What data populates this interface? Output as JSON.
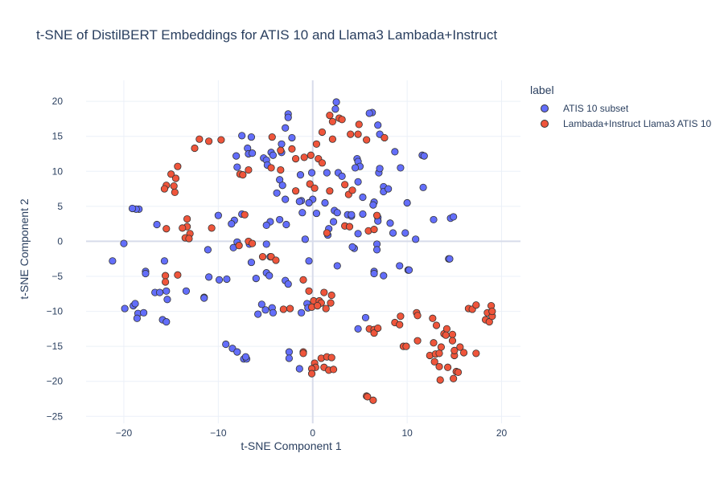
{
  "chart_data": {
    "type": "scatter",
    "title": "t-SNE of DistilBERT Embeddings for ATIS 10 and Llama3 Lambada+Instruct",
    "xlabel": "t-SNE Component 1",
    "ylabel": "t-SNE Component 2",
    "xlim": [
      -24,
      22
    ],
    "ylim": [
      -26,
      23
    ],
    "xticks": [
      -20,
      -10,
      0,
      10,
      20
    ],
    "yticks": [
      -25,
      -20,
      -15,
      -10,
      -5,
      0,
      5,
      10,
      15,
      20
    ],
    "grid": true,
    "legend_title": "label",
    "legend_position": "top-right",
    "series": [
      {
        "name": "ATIS 10 subset",
        "color": "#636efa",
        "points": [
          [
            2.5,
            19.9
          ],
          [
            -2.6,
            18.2
          ],
          [
            -2.6,
            17.7
          ],
          [
            2.4,
            18.9
          ],
          [
            6.3,
            18.4
          ],
          [
            6.0,
            18.3
          ],
          [
            -7.5,
            15.1
          ],
          [
            -2.2,
            14.8
          ],
          [
            -6.5,
            14.9
          ],
          [
            -2.9,
            16.2
          ],
          [
            7.1,
            15.3
          ],
          [
            6.9,
            16.6
          ],
          [
            -3.3,
            13.9
          ],
          [
            -6.9,
            13.3
          ],
          [
            -6.8,
            12.5
          ],
          [
            -6.4,
            12.6
          ],
          [
            -8.1,
            12.2
          ],
          [
            -4.4,
            12.7
          ],
          [
            -4.2,
            12.3
          ],
          [
            -3.3,
            12.7
          ],
          [
            -5.2,
            11.9
          ],
          [
            -4.9,
            11.6
          ],
          [
            -4.8,
            10.9
          ],
          [
            -8.0,
            10.6
          ],
          [
            4.7,
            11.8
          ],
          [
            4.8,
            11.4
          ],
          [
            8.7,
            12.8
          ],
          [
            11.6,
            12.3
          ],
          [
            11.8,
            12.2
          ],
          [
            -0.1,
            9.8
          ],
          [
            2.7,
            9.8
          ],
          [
            1.5,
            9.8
          ],
          [
            -1.3,
            9.5
          ],
          [
            3.1,
            9.3
          ],
          [
            5.0,
            10.7
          ],
          [
            4.5,
            10.5
          ],
          [
            7.0,
            9.8
          ],
          [
            7.1,
            10.4
          ],
          [
            9.3,
            10.5
          ],
          [
            4.8,
            8.5
          ],
          [
            7.5,
            7.8
          ],
          [
            7.5,
            7.1
          ],
          [
            8.0,
            7.5
          ],
          [
            11.7,
            7.7
          ],
          [
            -3.5,
            8.8
          ],
          [
            -3.8,
            6.9
          ],
          [
            -2.9,
            6.0
          ],
          [
            -3.2,
            8.0
          ],
          [
            -1.2,
            5.8
          ],
          [
            0.0,
            6.0
          ],
          [
            5.3,
            6.3
          ],
          [
            6.5,
            5.6
          ],
          [
            6.4,
            5.2
          ],
          [
            10.0,
            5.5
          ],
          [
            -0.4,
            5.5
          ],
          [
            1.3,
            5.5
          ],
          [
            -10.0,
            3.7
          ],
          [
            -8.3,
            3.0
          ],
          [
            -7.5,
            3.9
          ],
          [
            -8.6,
            2.5
          ],
          [
            -4.5,
            2.8
          ],
          [
            -3.5,
            3.1
          ],
          [
            -2.8,
            2.4
          ],
          [
            -4.9,
            2.3
          ],
          [
            -1.4,
            5.7
          ],
          [
            -1.1,
            4.1
          ],
          [
            0.4,
            4.0
          ],
          [
            3.7,
            3.8
          ],
          [
            4.1,
            3.6
          ],
          [
            5.3,
            3.9
          ],
          [
            6.9,
            3.4
          ],
          [
            6.9,
            2.9
          ],
          [
            8.2,
            2.6
          ],
          [
            12.8,
            3.1
          ],
          [
            14.6,
            3.3
          ],
          [
            14.9,
            3.5
          ],
          [
            -18.4,
            4.6
          ],
          [
            -18.7,
            4.6
          ],
          [
            -19.1,
            4.7
          ],
          [
            -16.5,
            2.4
          ],
          [
            -0.8,
            0.3
          ],
          [
            1.6,
            0.9
          ],
          [
            1.7,
            1.8
          ],
          [
            2.2,
            2.8
          ],
          [
            2.3,
            4.4
          ],
          [
            2.6,
            4.1
          ],
          [
            4.1,
            3.8
          ],
          [
            4.4,
            -1.0
          ],
          [
            4.2,
            -0.8
          ],
          [
            4.8,
            1.1
          ],
          [
            6.8,
            -0.4
          ],
          [
            6.8,
            -1.2
          ],
          [
            8.5,
            1.2
          ],
          [
            9.8,
            1.2
          ],
          [
            10.9,
            0.3
          ],
          [
            -8.0,
            -0.1
          ],
          [
            -8.4,
            -0.9
          ],
          [
            -6.7,
            -0.4
          ],
          [
            -4.9,
            -0.4
          ],
          [
            -21.2,
            -2.8
          ],
          [
            -20.0,
            -0.3
          ],
          [
            -11.1,
            -1.2
          ],
          [
            -6.5,
            -3.0
          ],
          [
            -4.5,
            -2.2
          ],
          [
            -15.7,
            -2.8
          ],
          [
            -17.7,
            -4.3
          ],
          [
            -17.7,
            -4.6
          ],
          [
            -0.4,
            -2.8
          ],
          [
            2.6,
            -3.5
          ],
          [
            9.2,
            -3.5
          ],
          [
            10.1,
            -4.1
          ],
          [
            10.2,
            -4.1
          ],
          [
            14.4,
            -2.5
          ],
          [
            14.5,
            -2.5
          ],
          [
            -11.0,
            -5.1
          ],
          [
            -9.9,
            -5.5
          ],
          [
            -9.1,
            -5.4
          ],
          [
            -6.0,
            -5.3
          ],
          [
            -4.9,
            -4.5
          ],
          [
            -4.6,
            -4.9
          ],
          [
            -2.9,
            -5.6
          ],
          [
            -2.6,
            -6.1
          ],
          [
            6.5,
            -4.3
          ],
          [
            6.5,
            -4.6
          ],
          [
            7.5,
            -4.9
          ],
          [
            -16.7,
            -7.3
          ],
          [
            -16.2,
            -7.3
          ],
          [
            -15.5,
            -7.1
          ],
          [
            -15.4,
            -8.3
          ],
          [
            -13.4,
            -7.1
          ],
          [
            -11.5,
            -8.0
          ],
          [
            -11.5,
            -8.1
          ],
          [
            -19.9,
            -9.6
          ],
          [
            -19.0,
            -9.2
          ],
          [
            -18.8,
            -8.9
          ],
          [
            -18.5,
            -10.3
          ],
          [
            -17.9,
            -10.2
          ],
          [
            -18.6,
            -11.0
          ],
          [
            -15.9,
            -11.2
          ],
          [
            -15.5,
            -11.5
          ],
          [
            -5.4,
            -9.0
          ],
          [
            -5.0,
            -9.8
          ],
          [
            -4.3,
            -9.5
          ],
          [
            -4.2,
            -10.2
          ],
          [
            -5.8,
            -10.4
          ],
          [
            -1.2,
            -10.2
          ],
          [
            -0.6,
            -8.9
          ],
          [
            -0.5,
            -9.5
          ],
          [
            4.8,
            -12.5
          ],
          [
            5.6,
            -10.9
          ],
          [
            -9.2,
            -14.7
          ],
          [
            -8.5,
            -15.3
          ],
          [
            -8.0,
            -15.8
          ],
          [
            -7.3,
            -16.8
          ],
          [
            -7.0,
            -16.8
          ],
          [
            -7.1,
            -16.5
          ],
          [
            -2.5,
            -15.8
          ],
          [
            -2.5,
            -16.7
          ],
          [
            -1.4,
            -18.2
          ],
          [
            0.7,
            -8.9
          ]
        ]
      },
      {
        "name": "Lambada+Instruct Llama3 ATIS 10",
        "color": "#ef553b",
        "points": [
          [
            1.8,
            18.0
          ],
          [
            2.8,
            17.6
          ],
          [
            3.1,
            17.4
          ],
          [
            2.1,
            17.1
          ],
          [
            4.9,
            16.7
          ],
          [
            1.0,
            15.6
          ],
          [
            -12.0,
            14.6
          ],
          [
            -11.0,
            14.3
          ],
          [
            -9.7,
            14.5
          ],
          [
            -12.5,
            13.3
          ],
          [
            -14.3,
            10.7
          ],
          [
            -15.0,
            9.6
          ],
          [
            -14.5,
            9.0
          ],
          [
            -15.5,
            8.0
          ],
          [
            -15.7,
            7.5
          ],
          [
            -14.7,
            7.9
          ],
          [
            -14.6,
            7.0
          ],
          [
            -2.2,
            13.2
          ],
          [
            -0.9,
            12.0
          ],
          [
            -0.2,
            12.3
          ],
          [
            -4.3,
            14.9
          ],
          [
            -3.4,
            13.0
          ],
          [
            -1.8,
            11.8
          ],
          [
            0.6,
            11.8
          ],
          [
            1.0,
            11.2
          ],
          [
            0.4,
            13.9
          ],
          [
            2.1,
            14.6
          ],
          [
            4.0,
            15.3
          ],
          [
            4.8,
            15.3
          ],
          [
            5.7,
            14.5
          ],
          [
            7.6,
            14.8
          ],
          [
            3.4,
            8.1
          ],
          [
            3.8,
            6.7
          ],
          [
            4.2,
            7.3
          ],
          [
            1.8,
            7.2
          ],
          [
            -0.3,
            8.2
          ],
          [
            0.2,
            7.6
          ],
          [
            -1.8,
            7.2
          ],
          [
            -3.4,
            10.2
          ],
          [
            -4.4,
            10.5
          ],
          [
            -7.7,
            9.6
          ],
          [
            -7.4,
            9.5
          ],
          [
            -6.8,
            10.2
          ],
          [
            -7.2,
            3.8
          ],
          [
            -13.3,
            3.2
          ],
          [
            -13.3,
            2.1
          ],
          [
            -13.8,
            1.9
          ],
          [
            -13.0,
            1.1
          ],
          [
            -13.5,
            0.5
          ],
          [
            -13.1,
            0.4
          ],
          [
            -15.5,
            1.8
          ],
          [
            -10.7,
            1.9
          ],
          [
            -6.8,
            0.0
          ],
          [
            -6.4,
            -0.3
          ],
          [
            -7.8,
            -0.6
          ],
          [
            -5.3,
            -2.2
          ],
          [
            -4.4,
            -2.2
          ],
          [
            -3.9,
            -2.7
          ],
          [
            -15.6,
            -4.9
          ],
          [
            -15.6,
            -5.8
          ],
          [
            -14.3,
            -4.8
          ],
          [
            1.5,
            1.2
          ],
          [
            3.4,
            2.2
          ],
          [
            3.9,
            2.1
          ],
          [
            5.9,
            1.5
          ],
          [
            6.5,
            1.7
          ],
          [
            6.8,
            3.7
          ],
          [
            -1.0,
            -5.5
          ],
          [
            -0.4,
            -7.1
          ],
          [
            1.2,
            -7.3
          ],
          [
            2.0,
            -7.7
          ],
          [
            0.1,
            -8.5
          ],
          [
            0.7,
            -8.5
          ],
          [
            0.9,
            -8.8
          ],
          [
            1.9,
            -8.8
          ],
          [
            -0.1,
            -9.4
          ],
          [
            0.5,
            -9.2
          ],
          [
            1.4,
            -9.6
          ],
          [
            -1.0,
            -15.8
          ],
          [
            -1.0,
            -16.0
          ],
          [
            0.2,
            -17.4
          ],
          [
            0.9,
            -16.7
          ],
          [
            1.5,
            -16.5
          ],
          [
            0.3,
            -18.0
          ],
          [
            -0.1,
            -18.2
          ],
          [
            -0.1,
            -18.9
          ],
          [
            1.2,
            -18.0
          ],
          [
            1.7,
            -18.4
          ],
          [
            2.2,
            -18.3
          ],
          [
            2.0,
            -16.6
          ],
          [
            5.7,
            -22.1
          ],
          [
            5.8,
            -22.2
          ],
          [
            6.4,
            -22.7
          ],
          [
            6.0,
            -12.5
          ],
          [
            6.5,
            -12.6
          ],
          [
            6.5,
            -13.1
          ],
          [
            6.9,
            -12.4
          ],
          [
            8.7,
            -11.6
          ],
          [
            9.2,
            -11.9
          ],
          [
            9.3,
            -10.7
          ],
          [
            9.6,
            -15.0
          ],
          [
            9.9,
            -15.0
          ],
          [
            11.0,
            -10.2
          ],
          [
            11.1,
            -10.6
          ],
          [
            11.1,
            -14.2
          ],
          [
            12.7,
            -11.0
          ],
          [
            12.8,
            -14.5
          ],
          [
            12.4,
            -16.3
          ],
          [
            13.0,
            -16.1
          ],
          [
            13.1,
            -12.0
          ],
          [
            12.9,
            -17.2
          ],
          [
            13.6,
            -15.1
          ],
          [
            13.4,
            -16.0
          ],
          [
            13.4,
            -17.9
          ],
          [
            13.5,
            -19.8
          ],
          [
            13.9,
            -13.2
          ],
          [
            14.2,
            -12.5
          ],
          [
            14.1,
            -13.4
          ],
          [
            14.3,
            -18.0
          ],
          [
            14.8,
            -13.3
          ],
          [
            14.8,
            -14.2
          ],
          [
            15.0,
            -16.3
          ],
          [
            15.0,
            -15.6
          ],
          [
            15.2,
            -18.6
          ],
          [
            15.4,
            -18.7
          ],
          [
            15.6,
            -15.1
          ],
          [
            16.0,
            -15.9
          ],
          [
            14.9,
            -19.6
          ],
          [
            16.5,
            -9.6
          ],
          [
            16.9,
            -9.7
          ],
          [
            17.3,
            -9.1
          ],
          [
            17.3,
            -16.0
          ],
          [
            18.3,
            -11.2
          ],
          [
            18.5,
            -10.2
          ],
          [
            18.7,
            -11.5
          ],
          [
            18.9,
            -9.2
          ],
          [
            19.0,
            -10.7
          ],
          [
            19.0,
            -10.0
          ],
          [
            -2.4,
            -9.6
          ],
          [
            -3.1,
            -9.7
          ]
        ]
      }
    ]
  }
}
